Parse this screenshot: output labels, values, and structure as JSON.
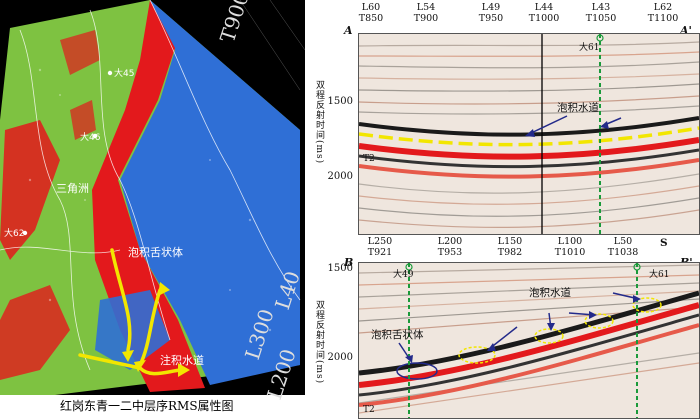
{
  "map": {
    "caption": "红岗东青一二中层序RMS属性图",
    "labels": {
      "da45": "大45",
      "da46": "大46",
      "sanjiaozhou": "三角洲",
      "da62": "大62",
      "tongue": "泡积舌状体",
      "channel": "注积水道"
    },
    "contours": [
      "T900",
      "L40",
      "L300",
      "L200"
    ],
    "colors": {
      "green": "#7ec241",
      "blue": "#2f6fd6",
      "red": "#e3191c",
      "arrow": "#f2e600"
    }
  },
  "upper_panel": {
    "corner_left": "A",
    "corner_right": "A'",
    "headers": [
      {
        "l": "L60",
        "t": "T850"
      },
      {
        "l": "L54",
        "t": "T900"
      },
      {
        "l": "L49",
        "t": "T950"
      },
      {
        "l": "L44",
        "t": "T1000"
      },
      {
        "l": "L43",
        "t": "T1050"
      },
      {
        "l": "L62",
        "t": "T1100"
      }
    ],
    "well": "大61",
    "y_ticks": [
      "1500",
      "2000"
    ],
    "ylabel": "双程反射时间(ms)",
    "annotation": "泡积水道",
    "horizon": "T2"
  },
  "lower_panel": {
    "corner_left": "B",
    "corner_right": "B'",
    "direction": "S",
    "headers": [
      {
        "l": "L250",
        "t": "T921"
      },
      {
        "l": "L200",
        "t": "T953"
      },
      {
        "l": "L150",
        "t": "T982"
      },
      {
        "l": "L100",
        "t": "T1010"
      },
      {
        "l": "L50",
        "t": "T1038"
      }
    ],
    "wells": [
      "大49",
      "大61"
    ],
    "y_ticks": [
      "1500",
      "2000"
    ],
    "ylabel": "双程反射时间(ms)",
    "annotation_channel": "泡积水道",
    "annotation_tongue": "泡积舌状体",
    "horizon": "T2"
  }
}
